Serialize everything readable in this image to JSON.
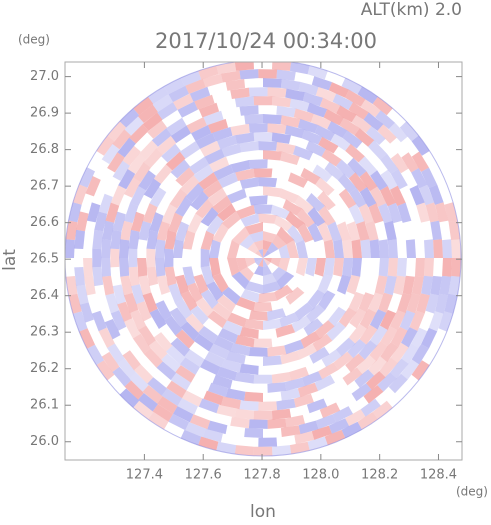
{
  "chart_data": {
    "type": "radar-ppi",
    "altitude_label": "ALT(km) 2.0",
    "title": "2017/10/24 00:34:00",
    "y_unit": "(deg)",
    "x_unit": "(deg)",
    "xlabel": "lon",
    "ylabel": "lat",
    "xlim": [
      127.13,
      128.48
    ],
    "ylim": [
      25.95,
      27.04
    ],
    "xticks": [
      127.4,
      127.6,
      127.8,
      {
        "value": 128.0,
        "label": "128.0"
      },
      128.2,
      128.4
    ],
    "yticks": [
      {
        "value": 26.0,
        "label": "26.0"
      },
      26.1,
      26.2,
      26.3,
      26.4,
      26.5,
      26.6,
      26.7,
      26.8,
      26.9,
      {
        "value": 27.0,
        "label": "27.0"
      }
    ]
  }
}
